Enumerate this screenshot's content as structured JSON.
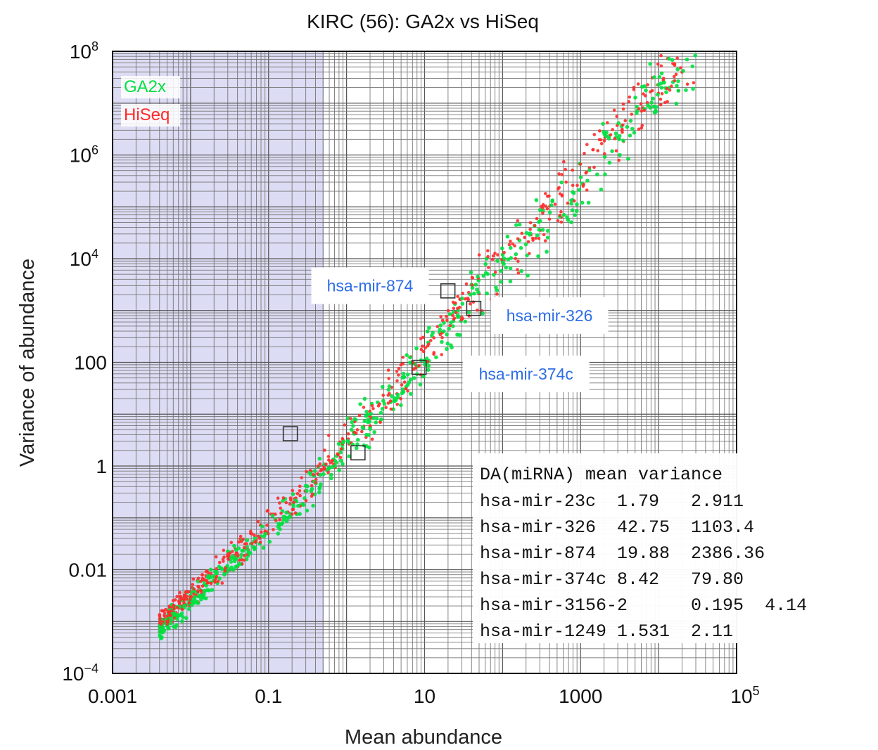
{
  "chart_data": {
    "type": "scatter",
    "title": "KIRC (56): GA2x vs HiSeq",
    "xlabel": "Mean abundance",
    "ylabel": "Variance of abundance",
    "xscale": "log",
    "yscale": "log",
    "xlim": [
      0.001,
      100000
    ],
    "ylim": [
      0.0001,
      100000000
    ],
    "grid": true,
    "x_ticks": [
      {
        "value": 0.001,
        "label": "0.001"
      },
      {
        "value": 0.1,
        "label": "0.1"
      },
      {
        "value": 10,
        "label": "10"
      },
      {
        "value": 1000,
        "label": "1000"
      },
      {
        "value": 100000,
        "label": "10",
        "sup": "5"
      }
    ],
    "y_ticks": [
      {
        "value": 0.0001,
        "label": "10",
        "sup": "−4"
      },
      {
        "value": 0.01,
        "label": "0.01"
      },
      {
        "value": 1,
        "label": "1"
      },
      {
        "value": 100,
        "label": "100"
      },
      {
        "value": 10000,
        "label": "10",
        "sup": "4"
      },
      {
        "value": 1000000,
        "label": "10",
        "sup": "6"
      },
      {
        "value": 100000000,
        "label": "10",
        "sup": "8"
      }
    ],
    "shaded_region": {
      "x": [
        0.001,
        0.5
      ],
      "color": "#dcdcf4"
    },
    "legend_position": "top-left",
    "series": [
      {
        "name": "GA2x",
        "color": "#00e040"
      },
      {
        "name": "HiSeq",
        "color": "#ff2a2a"
      }
    ],
    "trend": {
      "x": [
        0.004,
        0.03,
        0.1,
        0.3,
        1,
        3,
        10,
        30,
        100,
        300,
        1000,
        3000,
        10000,
        30000
      ],
      "y": [
        0.0008,
        0.012,
        0.06,
        0.3,
        3,
        15,
        120,
        1200,
        8000,
        40000,
        300000,
        3000000,
        20000000,
        50000000
      ]
    },
    "highlighted": [
      {
        "x": 0.19,
        "y": 4.2
      },
      {
        "x": 1.4,
        "y": 1.8
      },
      {
        "x": 8.5,
        "y": 80
      },
      {
        "x": 19.9,
        "y": 2390
      },
      {
        "x": 42.7,
        "y": 1100
      }
    ],
    "annotations": [
      {
        "text": "hsa-mir-874",
        "x": 2,
        "y": 3000
      },
      {
        "text": "hsa-mir-326",
        "x": 400,
        "y": 800
      },
      {
        "text": "hsa-mir-374c",
        "x": 200,
        "y": 60
      }
    ],
    "table": {
      "header": "DA(miRNA) mean variance",
      "rows": [
        "hsa-mir-23c  1.79   2.911",
        "hsa-mir-326  42.75  1103.4",
        "hsa-mir-874  19.88  2386.36",
        "hsa-mir-374c 8.42   79.80",
        "hsa-mir-3156-2      0.195  4.14",
        "hsa-mir-1249 1.531  2.11"
      ]
    }
  }
}
